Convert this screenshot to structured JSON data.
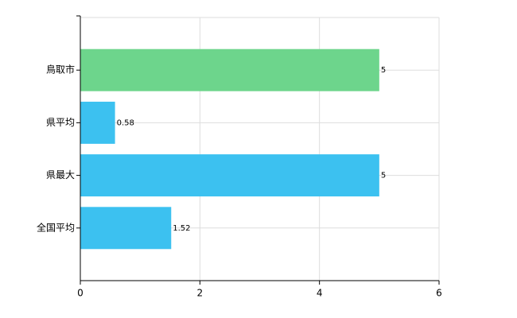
{
  "chart_data": {
    "type": "bar",
    "orientation": "horizontal",
    "categories": [
      "鳥取市",
      "県平均",
      "県最大",
      "全国平均"
    ],
    "values": [
      5,
      0.58,
      5,
      1.52
    ],
    "colors": [
      "#6dd58c",
      "#3cc1f0",
      "#3cc1f0",
      "#3cc1f0"
    ],
    "xlim": [
      0,
      6
    ],
    "xticks": [
      0,
      2,
      4,
      6
    ],
    "grid": true
  }
}
